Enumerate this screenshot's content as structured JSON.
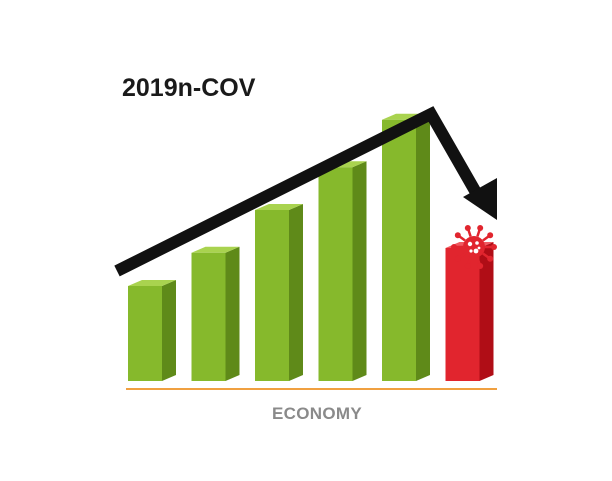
{
  "chart_data": {
    "type": "bar",
    "title": "2019n-COV",
    "xlabel": "ECONOMY",
    "ylabel": "",
    "categories": [
      "",
      "",
      "",
      "",
      "",
      ""
    ],
    "values": [
      10,
      13.5,
      18,
      22.5,
      27.5,
      14
    ],
    "ylim": [
      0,
      30
    ],
    "grid": false,
    "series_colors": [
      "#86b92c",
      "#86b92c",
      "#86b92c",
      "#86b92c",
      "#86b92c",
      "#e1252e"
    ],
    "trend_arrow": "rise-then-fall",
    "annotation_icon": "virus-icon"
  },
  "colors": {
    "bar_green_front": "#86b92c",
    "bar_green_side": "#5f8a19",
    "bar_green_top": "#a9d34f",
    "bar_red_front": "#e1252e",
    "bar_red_side": "#b00d16",
    "bar_red_top": "#f05a60",
    "baseline": "#f0a040",
    "arrow": "#111111",
    "virus": "#e1252e"
  }
}
